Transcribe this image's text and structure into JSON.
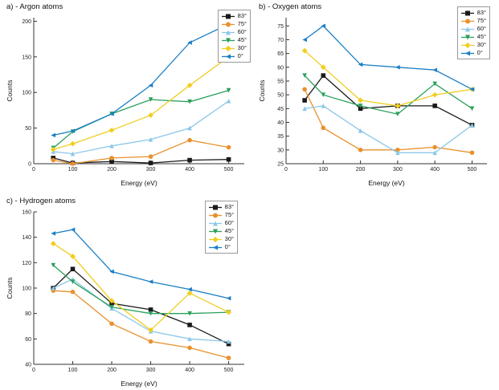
{
  "chart_data": [
    {
      "id": "argon",
      "type": "line",
      "title": "a) - Argon atoms",
      "xlabel": "Energy (eV)",
      "ylabel": "Counts",
      "x": [
        50,
        100,
        200,
        300,
        400,
        500
      ],
      "xlim": [
        0,
        540
      ],
      "ylim": [
        0,
        205
      ],
      "xticks": [
        0,
        100,
        200,
        300,
        400,
        500
      ],
      "yticks": [
        0,
        50,
        100,
        150,
        200
      ],
      "grid": false,
      "legend_position": "top-right",
      "series": [
        {
          "name": "83°",
          "color": "#1a1a1a",
          "marker": "square",
          "values": [
            8,
            1,
            3,
            1,
            5,
            6
          ]
        },
        {
          "name": "75°",
          "color": "#E8912D",
          "marker": "circle",
          "values": [
            5,
            0,
            8,
            10,
            33,
            23
          ]
        },
        {
          "name": "60°",
          "color": "#8CC7E8",
          "marker": "triangle-up",
          "values": [
            17,
            14,
            25,
            34,
            50,
            88
          ]
        },
        {
          "name": "45°",
          "color": "#2AA05A",
          "marker": "triangle-down",
          "values": [
            22,
            45,
            70,
            90,
            87,
            103
          ]
        },
        {
          "name": "30°",
          "color": "#F0CE1F",
          "marker": "diamond",
          "values": [
            20,
            28,
            47,
            68,
            110,
            150
          ]
        },
        {
          "name": "0°",
          "color": "#1B7FC4",
          "marker": "triangle-left",
          "values": [
            40,
            46,
            70,
            110,
            170,
            196
          ]
        }
      ]
    },
    {
      "id": "oxygen",
      "type": "line",
      "title": "b) - Oxygen atoms",
      "xlabel": "Energy (eV)",
      "ylabel": "Counts",
      "x": [
        50,
        100,
        200,
        300,
        400,
        500
      ],
      "xlim": [
        0,
        540
      ],
      "ylim": [
        25,
        78
      ],
      "xticks": [
        0,
        100,
        200,
        300,
        400,
        500
      ],
      "yticks": [
        25,
        30,
        35,
        40,
        45,
        50,
        55,
        60,
        65,
        70,
        75
      ],
      "grid": false,
      "legend_position": "top-right",
      "series": [
        {
          "name": "83°",
          "color": "#1a1a1a",
          "marker": "square",
          "values": [
            48,
            57,
            45,
            46,
            46,
            39
          ]
        },
        {
          "name": "75°",
          "color": "#E8912D",
          "marker": "circle",
          "values": [
            52,
            38,
            30,
            30,
            31,
            29
          ]
        },
        {
          "name": "60°",
          "color": "#8CC7E8",
          "marker": "triangle-up",
          "values": [
            45,
            46,
            37,
            29,
            29,
            39
          ]
        },
        {
          "name": "45°",
          "color": "#2AA05A",
          "marker": "triangle-down",
          "values": [
            57,
            50,
            46,
            43,
            54,
            45
          ]
        },
        {
          "name": "30°",
          "color": "#F0CE1F",
          "marker": "diamond",
          "values": [
            66,
            60,
            48,
            46,
            50,
            52
          ]
        },
        {
          "name": "0°",
          "color": "#1B7FC4",
          "marker": "triangle-left",
          "values": [
            70,
            75,
            61,
            60,
            59,
            52
          ]
        }
      ]
    },
    {
      "id": "hydrogen",
      "type": "line",
      "title": "c) - Hydrogen atoms",
      "xlabel": "Energy (eV)",
      "ylabel": "Counts",
      "x": [
        50,
        100,
        200,
        300,
        400,
        500
      ],
      "xlim": [
        0,
        540
      ],
      "ylim": [
        40,
        160
      ],
      "xticks": [
        0,
        100,
        200,
        300,
        400,
        500
      ],
      "yticks": [
        40,
        60,
        80,
        100,
        120,
        140,
        160
      ],
      "grid": false,
      "legend_position": "top-right",
      "series": [
        {
          "name": "83°",
          "color": "#1a1a1a",
          "marker": "square",
          "values": [
            100,
            115,
            88,
            83,
            71,
            56
          ]
        },
        {
          "name": "75°",
          "color": "#E8912D",
          "marker": "circle",
          "values": [
            98,
            97,
            72,
            58,
            53,
            45
          ]
        },
        {
          "name": "60°",
          "color": "#8CC7E8",
          "marker": "triangle-up",
          "values": [
            100,
            107,
            84,
            66,
            60,
            58
          ]
        },
        {
          "name": "45°",
          "color": "#2AA05A",
          "marker": "triangle-down",
          "values": [
            118,
            105,
            85,
            80,
            80,
            81
          ]
        },
        {
          "name": "30°",
          "color": "#F0CE1F",
          "marker": "diamond",
          "values": [
            135,
            125,
            90,
            67,
            96,
            81
          ]
        },
        {
          "name": "0°",
          "color": "#1B7FC4",
          "marker": "triangle-left",
          "values": [
            143,
            146,
            113,
            105,
            99,
            92
          ]
        }
      ]
    }
  ]
}
